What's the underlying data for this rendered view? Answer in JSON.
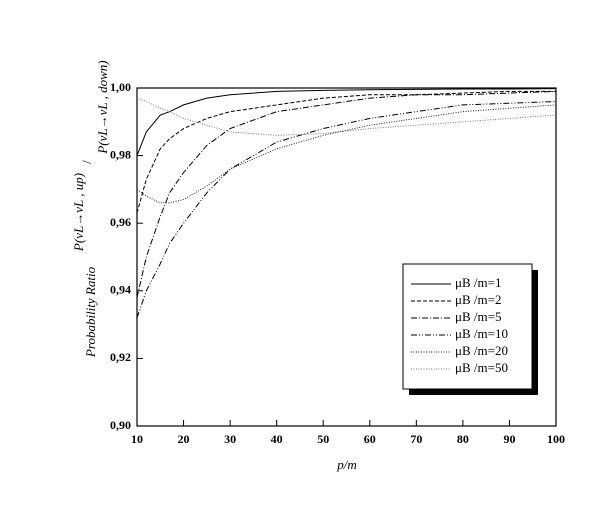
{
  "chart_data": {
    "type": "line",
    "xlabel": "p/m",
    "ylabel": "Probability Ratio",
    "ylabel_numerator": "P(νL→νL , up)",
    "ylabel_slash": "/",
    "ylabel_denominator": "P(νL→νL , down)",
    "x": [
      10,
      12,
      15,
      17,
      20,
      25,
      30,
      40,
      50,
      60,
      70,
      80,
      90,
      100
    ],
    "series": [
      {
        "name": "μB /m=1",
        "color": "#000000",
        "dash": "none",
        "values": [
          0.98,
          0.987,
          0.992,
          0.993,
          0.995,
          0.997,
          0.998,
          0.999,
          0.9993,
          0.9995,
          0.9996,
          0.9997,
          0.9997,
          0.9998
        ]
      },
      {
        "name": "μB /m=2",
        "color": "#000000",
        "dash": "4,2",
        "values": [
          0.963,
          0.973,
          0.982,
          0.985,
          0.988,
          0.991,
          0.993,
          0.995,
          0.997,
          0.998,
          0.998,
          0.9985,
          0.999,
          0.999
        ]
      },
      {
        "name": "μB /m=5",
        "color": "#000000",
        "dash": "6,2,1,2",
        "values": [
          0.938,
          0.95,
          0.962,
          0.969,
          0.975,
          0.983,
          0.988,
          0.993,
          0.995,
          0.997,
          0.998,
          0.998,
          0.9985,
          0.999
        ]
      },
      {
        "name": "μB /m=10",
        "color": "#000000",
        "dash": "6,2,1,2,1,2",
        "values": [
          0.932,
          0.94,
          0.948,
          0.954,
          0.96,
          0.969,
          0.976,
          0.984,
          0.988,
          0.991,
          0.993,
          0.995,
          0.9955,
          0.996
        ]
      },
      {
        "name": "μB /m=20",
        "color": "#222222",
        "dash": "1,1.5",
        "values": [
          0.97,
          0.968,
          0.966,
          0.966,
          0.967,
          0.971,
          0.976,
          0.982,
          0.986,
          0.989,
          0.991,
          0.993,
          0.994,
          0.995
        ]
      },
      {
        "name": "μB /m=50",
        "color": "#777777",
        "dash": "1,1.5",
        "values": [
          0.997,
          0.996,
          0.994,
          0.993,
          0.991,
          0.989,
          0.987,
          0.986,
          0.9865,
          0.988,
          0.989,
          0.99,
          0.991,
          0.992
        ]
      }
    ],
    "xlim": [
      10,
      100
    ],
    "xticks": [
      10,
      20,
      30,
      40,
      50,
      60,
      70,
      80,
      90,
      100
    ],
    "ylim": [
      0.9,
      1.0
    ],
    "yticks": [
      {
        "value": 0.9,
        "label": "0,90"
      },
      {
        "value": 0.92,
        "label": "0,92"
      },
      {
        "value": 0.94,
        "label": "0,94"
      },
      {
        "value": 0.96,
        "label": "0,96"
      },
      {
        "value": 0.98,
        "label": "0,98"
      },
      {
        "value": 1.0,
        "label": "1,00"
      }
    ],
    "legend": "lower right",
    "grid": false
  }
}
